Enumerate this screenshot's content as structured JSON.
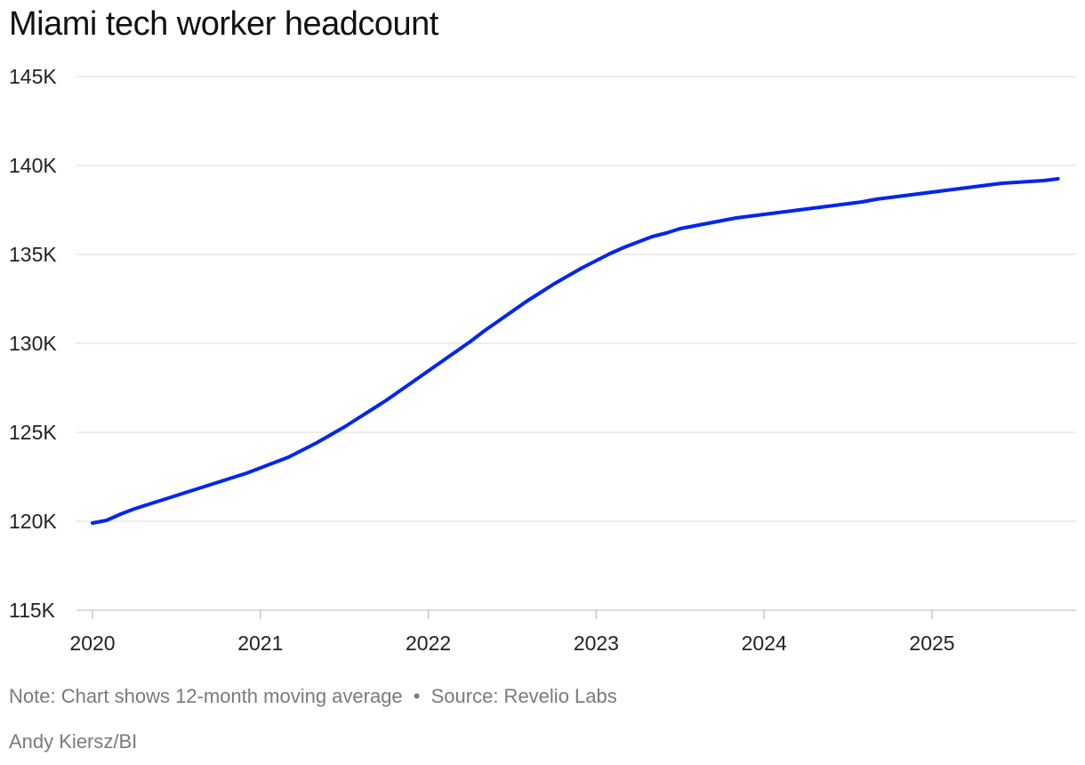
{
  "chart_data": {
    "type": "line",
    "title": "Miami tech worker headcount",
    "xlabel": "",
    "ylabel": "",
    "ylim": [
      115000,
      145000
    ],
    "yticks": [
      {
        "value": 115000,
        "label": "115K"
      },
      {
        "value": 120000,
        "label": "120K"
      },
      {
        "value": 125000,
        "label": "125K"
      },
      {
        "value": 130000,
        "label": "130K"
      },
      {
        "value": 135000,
        "label": "135K"
      },
      {
        "value": 140000,
        "label": "140K"
      },
      {
        "value": 145000,
        "label": "145K"
      }
    ],
    "xlim": [
      2020.0,
      2025.75
    ],
    "xticks": [
      {
        "value": 2020,
        "label": "2020"
      },
      {
        "value": 2021,
        "label": "2021"
      },
      {
        "value": 2022,
        "label": "2022"
      },
      {
        "value": 2023,
        "label": "2023"
      },
      {
        "value": 2024,
        "label": "2024"
      },
      {
        "value": 2025,
        "label": "2025"
      }
    ],
    "grid": true,
    "series": [
      {
        "color": "#0026ee",
        "points": [
          [
            2020.0,
            119900
          ],
          [
            2020.083,
            120050
          ],
          [
            2020.167,
            120400
          ],
          [
            2020.25,
            120700
          ],
          [
            2020.333,
            120950
          ],
          [
            2020.417,
            121200
          ],
          [
            2020.5,
            121450
          ],
          [
            2020.583,
            121700
          ],
          [
            2020.667,
            121950
          ],
          [
            2020.75,
            122200
          ],
          [
            2020.833,
            122450
          ],
          [
            2020.917,
            122700
          ],
          [
            2021.0,
            123000
          ],
          [
            2021.083,
            123300
          ],
          [
            2021.167,
            123600
          ],
          [
            2021.25,
            124000
          ],
          [
            2021.333,
            124400
          ],
          [
            2021.417,
            124850
          ],
          [
            2021.5,
            125300
          ],
          [
            2021.583,
            125800
          ],
          [
            2021.667,
            126300
          ],
          [
            2021.75,
            126800
          ],
          [
            2021.833,
            127350
          ],
          [
            2021.917,
            127900
          ],
          [
            2022.0,
            128450
          ],
          [
            2022.083,
            129000
          ],
          [
            2022.167,
            129550
          ],
          [
            2022.25,
            130100
          ],
          [
            2022.333,
            130700
          ],
          [
            2022.417,
            131250
          ],
          [
            2022.5,
            131800
          ],
          [
            2022.583,
            132350
          ],
          [
            2022.667,
            132850
          ],
          [
            2022.75,
            133350
          ],
          [
            2022.833,
            133800
          ],
          [
            2022.917,
            134250
          ],
          [
            2023.0,
            134650
          ],
          [
            2023.083,
            135050
          ],
          [
            2023.167,
            135400
          ],
          [
            2023.25,
            135700
          ],
          [
            2023.333,
            136000
          ],
          [
            2023.417,
            136200
          ],
          [
            2023.5,
            136450
          ],
          [
            2023.583,
            136600
          ],
          [
            2023.667,
            136750
          ],
          [
            2023.75,
            136900
          ],
          [
            2023.833,
            137050
          ],
          [
            2023.917,
            137150
          ],
          [
            2024.0,
            137250
          ],
          [
            2024.083,
            137350
          ],
          [
            2024.167,
            137450
          ],
          [
            2024.25,
            137550
          ],
          [
            2024.333,
            137650
          ],
          [
            2024.417,
            137750
          ],
          [
            2024.5,
            137850
          ],
          [
            2024.583,
            137950
          ],
          [
            2024.667,
            138100
          ],
          [
            2024.75,
            138200
          ],
          [
            2024.833,
            138300
          ],
          [
            2024.917,
            138400
          ],
          [
            2025.0,
            138500
          ],
          [
            2025.083,
            138600
          ],
          [
            2025.167,
            138700
          ],
          [
            2025.25,
            138800
          ],
          [
            2025.333,
            138900
          ],
          [
            2025.417,
            139000
          ],
          [
            2025.5,
            139050
          ],
          [
            2025.583,
            139100
          ],
          [
            2025.667,
            139150
          ],
          [
            2025.75,
            139250
          ]
        ]
      }
    ]
  },
  "footer": {
    "note": "Note: Chart shows 12-month moving average",
    "separator": "•",
    "source": "Source: Revelio Labs",
    "credit": "Andy Kiersz/BI"
  }
}
